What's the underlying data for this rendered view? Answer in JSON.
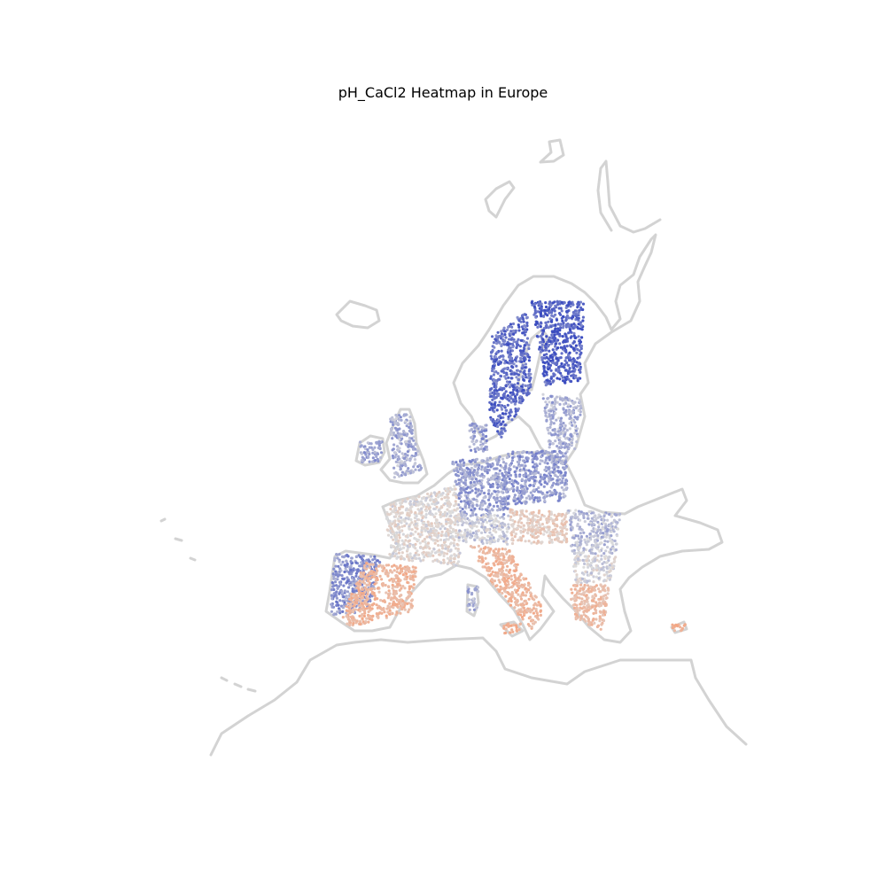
{
  "title": "pH_CaCl2 Heatmap in Europe",
  "chart_data": {
    "type": "heatmap",
    "title": "pH_CaCl2 Heatmap in Europe",
    "xlabel": "",
    "ylabel": "",
    "grid": false,
    "axes_visible": false,
    "colormap": "coolwarm",
    "colormap_colors": {
      "low": "#3b4cc0",
      "mid": "#dddddd",
      "high": "#f4a582"
    },
    "basemap_color": "#d3d3d3",
    "regions": [
      {
        "region": "Finland",
        "level": 0.08
      },
      {
        "region": "Sweden",
        "level": 0.12
      },
      {
        "region": "Baltics",
        "level": 0.35
      },
      {
        "region": "Ireland",
        "level": 0.3
      },
      {
        "region": "Great Britain",
        "level": 0.35
      },
      {
        "region": "Denmark",
        "level": 0.3
      },
      {
        "region": "Germany",
        "level": 0.3
      },
      {
        "region": "Poland",
        "level": 0.28
      },
      {
        "region": "France",
        "level": 0.55
      },
      {
        "region": "Alps",
        "level": 0.45
      },
      {
        "region": "Hungary",
        "level": 0.65
      },
      {
        "region": "Romania",
        "level": 0.4
      },
      {
        "region": "Bulgaria",
        "level": 0.5
      },
      {
        "region": "Iberia North-West",
        "level": 0.25
      },
      {
        "region": "Spain",
        "level": 0.85
      },
      {
        "region": "Italy",
        "level": 0.85
      },
      {
        "region": "Sardinia",
        "level": 0.35
      },
      {
        "region": "Sicily",
        "level": 0.9
      },
      {
        "region": "Greece",
        "level": 0.8
      },
      {
        "region": "Cyprus",
        "level": 0.9
      }
    ]
  }
}
